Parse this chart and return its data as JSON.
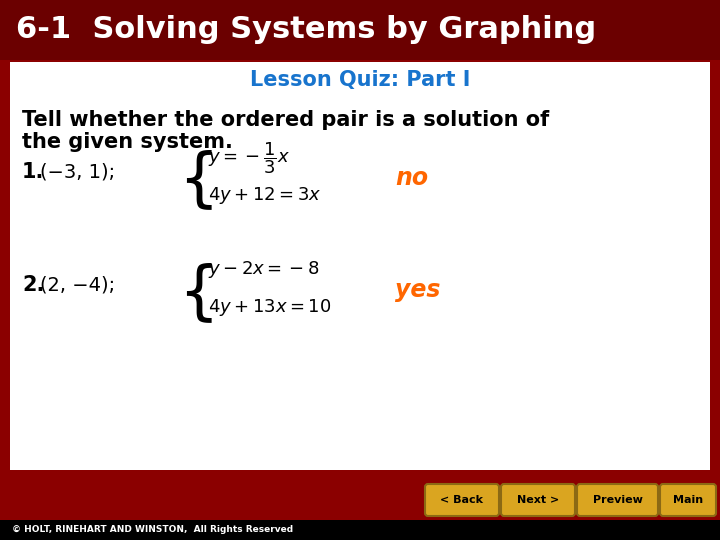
{
  "title": "6-1  Solving Systems by Graphing",
  "title_bg": "#6B0000",
  "title_color": "#FFFFFF",
  "subtitle": "Lesson Quiz: Part I",
  "subtitle_color": "#1874CD",
  "body_bg": "#FFFFFF",
  "main_bg": "#8B0000",
  "instructions_line1": "Tell whether the ordered pair is a solution of",
  "instructions_line2": "the given system.",
  "instructions_color": "#000000",
  "problem1_answer": "no",
  "problem2_answer": "yes",
  "answer_color": "#FF6600",
  "footer_text": "© HOLT, RINEHART AND WINSTON,  All Rights Reserved",
  "footer_bg": "#000000",
  "footer_color": "#FFFFFF",
  "button_bg": "#DAA520",
  "button_color": "#000000",
  "button_border": "#8B6914",
  "buttons": [
    "< Back",
    "Next >",
    "Preview",
    "Main"
  ],
  "title_fontsize": 22,
  "subtitle_fontsize": 15,
  "instruction_fontsize": 15,
  "label_fontsize": 15,
  "eq_fontsize": 13,
  "answer_fontsize": 17
}
